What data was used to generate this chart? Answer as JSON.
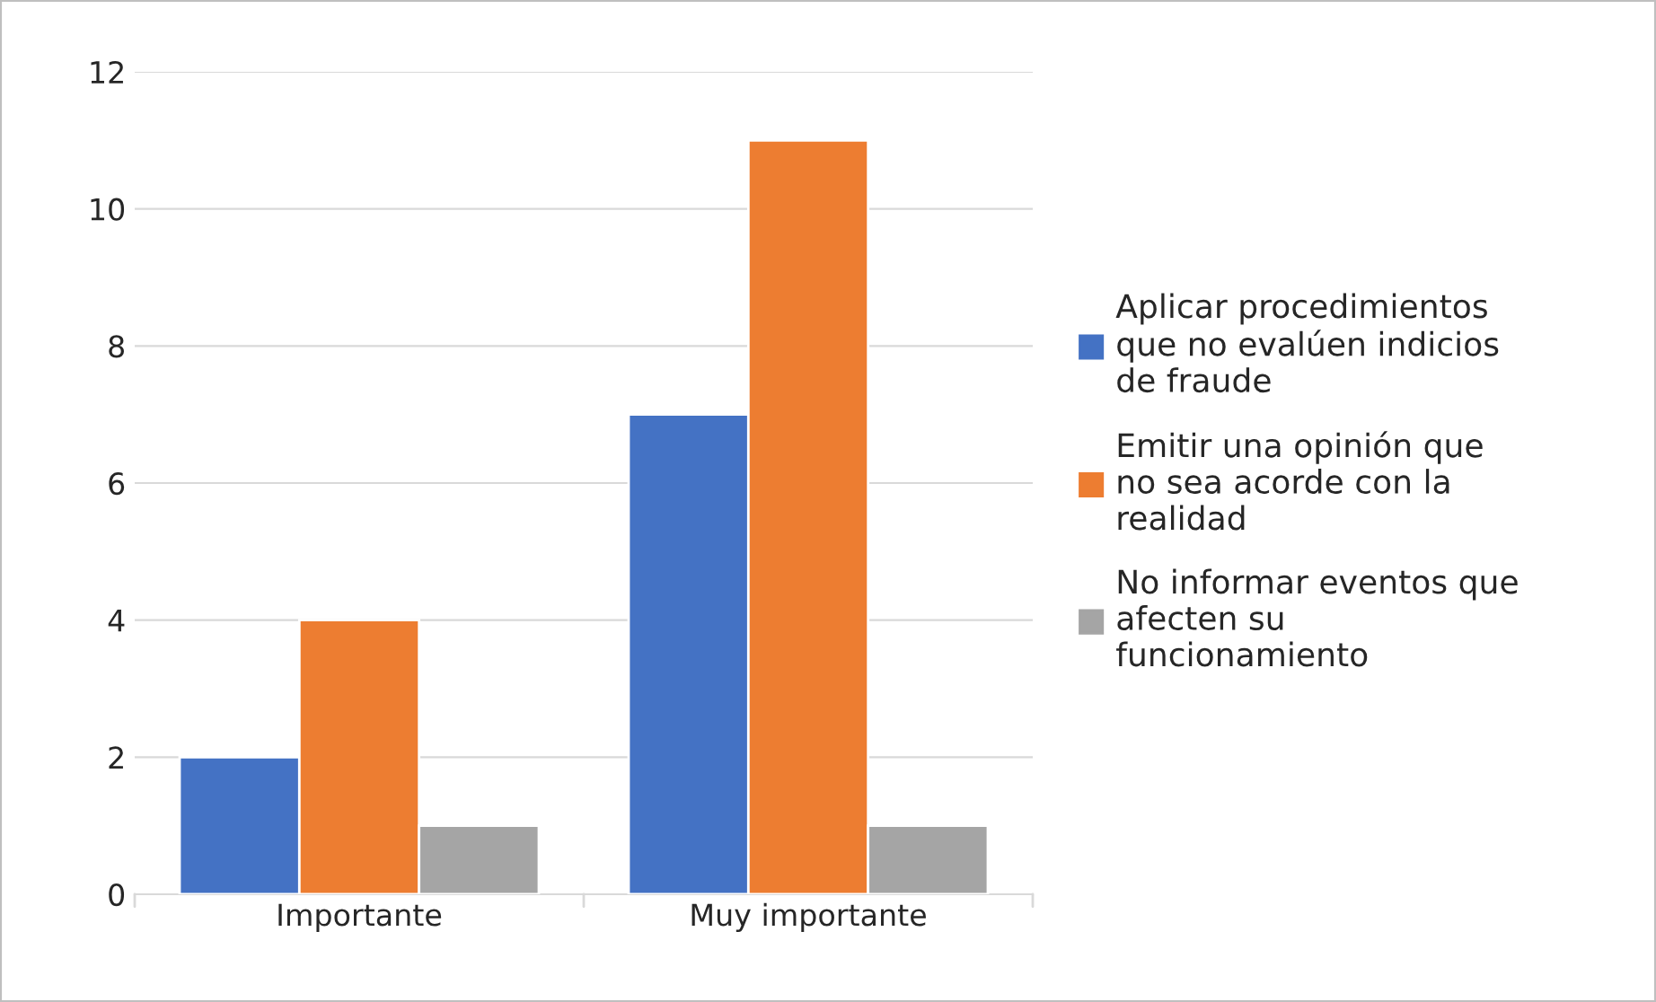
{
  "chart_data": {
    "type": "bar",
    "categories": [
      "Importante",
      "Muy importante"
    ],
    "series": [
      {
        "name": "Aplicar procedimientos\nque no evalúen indicios\nde fraude",
        "color": "#4472c4",
        "values": [
          2,
          7
        ]
      },
      {
        "name": "Emitir una opinión que\nno sea acorde con la\nrealidad",
        "color": "#ed7d31",
        "values": [
          4,
          11
        ]
      },
      {
        "name": "No informar eventos que\nafecten su\nfuncionamiento",
        "color": "#a5a5a5",
        "values": [
          1,
          1
        ]
      }
    ],
    "ylim": [
      0,
      12
    ],
    "yticks": [
      0,
      2,
      4,
      6,
      8,
      10,
      12
    ],
    "grid": "y",
    "legend": "right"
  }
}
